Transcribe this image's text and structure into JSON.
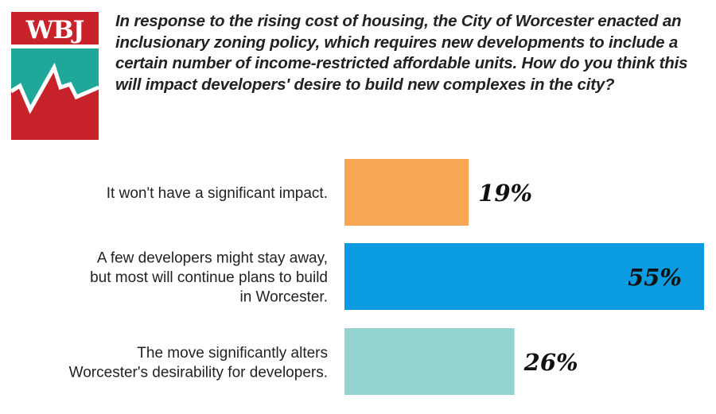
{
  "logo": {
    "text": "WBJ",
    "colors": {
      "red": "#c8232b",
      "teal": "#1fa89a"
    }
  },
  "question": "In response to the rising cost of housing, the City of Worcester enacted an inclusionary zoning policy, which requires new developments to include a certain number of income-restricted affordable units. How do you think this will impact developers' desire to build new complexes in the city?",
  "chart_data": {
    "type": "bar",
    "orientation": "horizontal",
    "title": "In response to the rising cost of housing, the City of Worcester enacted an inclusionary zoning policy, which requires new developments to include a certain number of income-restricted affordable units. How do you think this will impact developers' desire to build new complexes in the city?",
    "categories": [
      [
        "It won't have a significant impact."
      ],
      [
        "A few developers might stay away,",
        "but most will continue plans to build",
        "in Worcester."
      ],
      [
        "The move significantly alters",
        "Worcester's desirability for developers."
      ]
    ],
    "values": [
      19,
      55,
      26
    ],
    "value_labels": [
      "19%",
      "55%",
      "26%"
    ],
    "colors": [
      "#f7a754",
      "#0b9be0",
      "#93d4d0"
    ],
    "xlim": [
      0,
      55
    ],
    "grid": false
  }
}
